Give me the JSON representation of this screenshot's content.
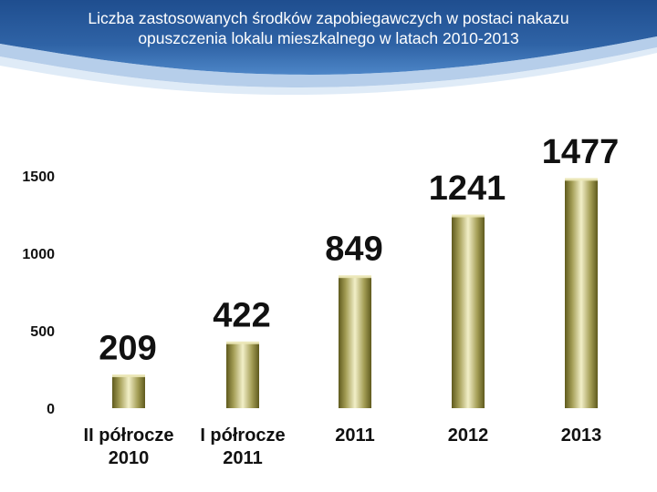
{
  "title_lines": [
    "Liczba zastosowanych środków zapobiegawczych w postaci nakazu",
    "opuszczenia lokalu mieszkalnego w latach 2010-2013"
  ],
  "colors": {
    "header_dark": "#1f4e8f",
    "header_mid": "#3f78bd",
    "bar_light": "#f2efc8",
    "bar_dark": "#5f5a1d"
  },
  "chart_data": {
    "type": "bar",
    "categories": [
      [
        "II półrocze",
        "2010"
      ],
      [
        "I półrocze",
        "2011"
      ],
      [
        "2011"
      ],
      [
        "2012"
      ],
      [
        "2013"
      ]
    ],
    "values": [
      209,
      422,
      849,
      1241,
      1477
    ],
    "data_labels": [
      "209",
      "422",
      "849",
      "1241",
      "1477"
    ],
    "ylim": [
      0,
      1500
    ],
    "yticks": [
      0,
      500,
      1000,
      1500
    ],
    "ytick_labels": [
      "0",
      "500",
      "1000",
      "1500"
    ],
    "grid": false,
    "legend": false
  }
}
